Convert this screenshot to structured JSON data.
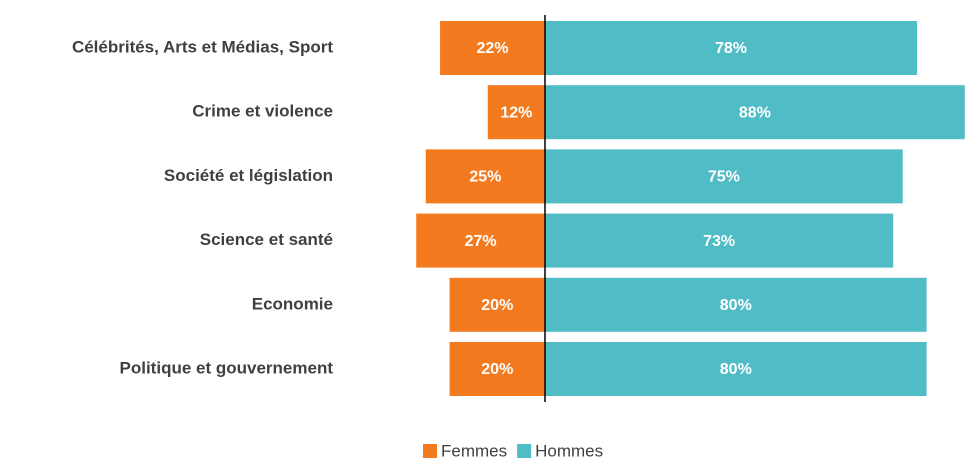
{
  "chart_data": {
    "type": "diverging-bar",
    "categories": [
      "Célébrités, Arts et Médias, Sport",
      "Crime et violence",
      "Société et législation",
      "Science et santé",
      "Economie",
      "Politique et gouvernement"
    ],
    "series": [
      {
        "name": "Femmes",
        "color": "#f47a1f",
        "side": "left",
        "values": [
          22,
          12,
          25,
          27,
          20,
          20
        ],
        "value_labels": [
          "22%",
          "12%",
          "25%",
          "27%",
          "20%",
          "20%"
        ]
      },
      {
        "name": "Hommes",
        "color": "#4fbcc6",
        "side": "right",
        "values": [
          78,
          88,
          75,
          73,
          80,
          80
        ],
        "value_labels": [
          "78%",
          "88%",
          "75%",
          "73%",
          "80%",
          "80%"
        ]
      }
    ],
    "legend": "bottom"
  }
}
